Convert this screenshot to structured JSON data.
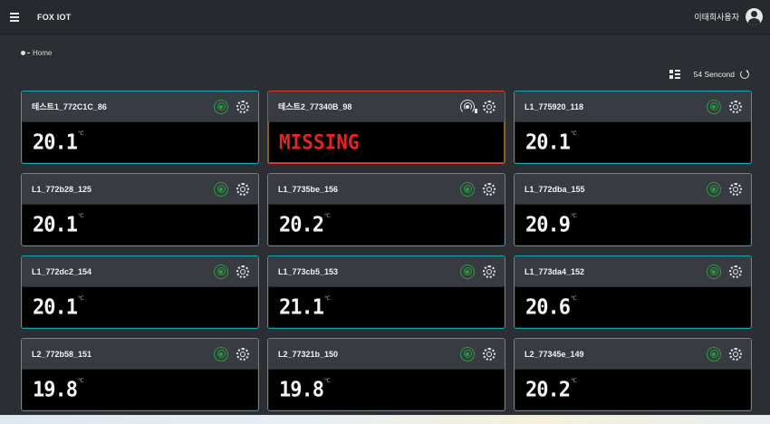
{
  "app": {
    "title": "FOX IOT"
  },
  "user": {
    "name": "이태희사용자"
  },
  "breadcrumb": {
    "label": "Home"
  },
  "refresh": {
    "interval_label": "54 Sencond"
  },
  "cards": [
    {
      "name": "테스트1_772C1C_86",
      "value": "20.1",
      "unit": "℃",
      "signal": "on",
      "missing": false
    },
    {
      "name": "테스트2_77340B_98",
      "value": "MISSING",
      "unit": "",
      "signal": "off",
      "missing": true
    },
    {
      "name": "L1_775920_118",
      "value": "20.1",
      "unit": "℃",
      "signal": "on",
      "missing": false
    },
    {
      "name": "L1_772b28_125",
      "value": "20.1",
      "unit": "℃",
      "signal": "on",
      "missing": false
    },
    {
      "name": "L1_7735be_156",
      "value": "20.2",
      "unit": "℃",
      "signal": "on",
      "missing": false
    },
    {
      "name": "L1_772dba_155",
      "value": "20.9",
      "unit": "℃",
      "signal": "on",
      "missing": false
    },
    {
      "name": "L1_772dc2_154",
      "value": "20.1",
      "unit": "℃",
      "signal": "on",
      "missing": false
    },
    {
      "name": "L1_773cb5_153",
      "value": "21.1",
      "unit": "℃",
      "signal": "on",
      "missing": false
    },
    {
      "name": "L1_773da4_152",
      "value": "20.6",
      "unit": "℃",
      "signal": "on",
      "missing": false
    },
    {
      "name": "L2_772b58_151",
      "value": "19.8",
      "unit": "℃",
      "signal": "on",
      "missing": false
    },
    {
      "name": "L2_77321b_150",
      "value": "19.8",
      "unit": "℃",
      "signal": "on",
      "missing": false
    },
    {
      "name": "L2_77345e_149",
      "value": "20.2",
      "unit": "℃",
      "signal": "on",
      "missing": false
    }
  ],
  "icons": {
    "menu": "menu-icon",
    "avatar": "user-avatar-icon",
    "layout": "layout-icon",
    "refresh": "refresh-icon",
    "signal": "signal-icon",
    "settings": "gear-icon"
  },
  "colors": {
    "card_border": "#1ba6b5",
    "alert_border": "#d93a2a",
    "signal_on": "#2a9d3f",
    "missing_text": "#e22424"
  }
}
